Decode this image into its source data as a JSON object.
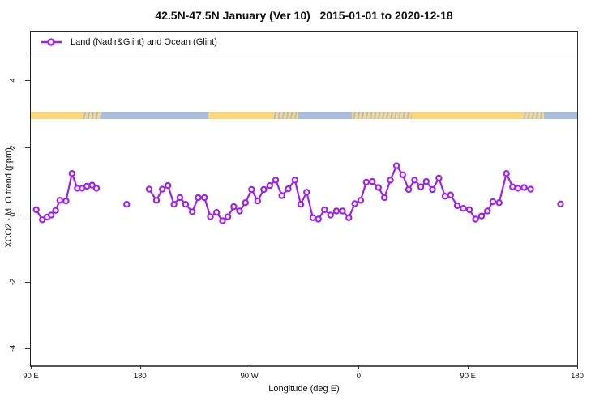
{
  "chart_data": {
    "type": "line",
    "title": "42.5N-47.5N January (Ver 10)   2015-01-01 to 2020-12-18",
    "xlabel": "Longitude (deg E)",
    "ylabel": "XCO2 - MLO trend (ppm)",
    "xlim": [
      90,
      540
    ],
    "ylim": [
      -4.5,
      5.45
    ],
    "grid": "off",
    "x_ticks": [
      {
        "pos": 90,
        "label": "90 E"
      },
      {
        "pos": 180,
        "label": "180"
      },
      {
        "pos": 270,
        "label": "90 W"
      },
      {
        "pos": 360,
        "label": "0"
      },
      {
        "pos": 450,
        "label": "90 E"
      },
      {
        "pos": 540,
        "label": "180"
      }
    ],
    "y_ticks": [
      {
        "pos": 4,
        "label": "4"
      },
      {
        "pos": 2,
        "label": "2"
      },
      {
        "pos": 0,
        "label": "0"
      },
      {
        "pos": -2,
        "label": "-2"
      },
      {
        "pos": -4,
        "label": "-4"
      }
    ],
    "legend": {
      "label": "Land (Nadir&Glint) and Ocean (Glint)",
      "position": "top-left-full-width"
    },
    "land_ocean_band": {
      "description": "land/ocean mask strip drawn near y=3",
      "y_top": 3.05,
      "y_bottom": 2.84,
      "colors": {
        "land": "#FBD77D",
        "ocean": "#A9BEDC"
      },
      "segments": [
        {
          "from": 90,
          "to": 132.3,
          "type": "land"
        },
        {
          "from": 132.3,
          "to": 147.7,
          "type": "mixed"
        },
        {
          "from": 147.7,
          "to": 236.3,
          "type": "ocean"
        },
        {
          "from": 236.3,
          "to": 289,
          "type": "land"
        },
        {
          "from": 289,
          "to": 310.3,
          "type": "mixed"
        },
        {
          "from": 310.3,
          "to": 354.3,
          "type": "ocean"
        },
        {
          "from": 354.3,
          "to": 403.7,
          "type": "mixed"
        },
        {
          "from": 403.7,
          "to": 494.3,
          "type": "land"
        },
        {
          "from": 494.3,
          "to": 512.3,
          "type": "mixed"
        },
        {
          "from": 512.3,
          "to": 540,
          "type": "ocean"
        }
      ]
    },
    "series": [
      {
        "name": "Land (Nadir&Glint) and Ocean (Glint)",
        "color": "#A020F0",
        "marker": "open-circle",
        "x_units": "deg E equivalent (90 to 540, wraps at 180/-180)",
        "segments": [
          [
            [
              94.5,
              0.14
            ],
            [
              99.5,
              -0.16
            ],
            [
              103.5,
              -0.08
            ],
            [
              106.8,
              -0.02
            ],
            [
              110.5,
              0.12
            ],
            [
              113.9,
              0.42
            ],
            [
              119,
              0.4
            ],
            [
              123.9,
              1.22
            ],
            [
              128.3,
              0.78
            ],
            [
              132.3,
              0.78
            ],
            [
              136.3,
              0.84
            ],
            [
              140.5,
              0.87
            ],
            [
              144.1,
              0.78
            ]
          ],
          [
            [
              169,
              0.3
            ]
          ],
          [
            [
              187.5,
              0.75
            ],
            [
              193.5,
              0.42
            ],
            [
              198.3,
              0.75
            ],
            [
              203,
              0.86
            ],
            [
              207.9,
              0.3
            ],
            [
              212.8,
              0.5
            ],
            [
              217.5,
              0.3
            ],
            [
              223,
              0.08
            ],
            [
              227.9,
              0.5
            ],
            [
              233,
              0.5
            ],
            [
              237.9,
              -0.07
            ],
            [
              243,
              0.06
            ],
            [
              247.9,
              -0.19
            ],
            [
              252.3,
              -0.07
            ],
            [
              257.2,
              0.23
            ],
            [
              261.9,
              0.1
            ],
            [
              266.8,
              0.35
            ],
            [
              271.9,
              0.74
            ],
            [
              276.8,
              0.4
            ],
            [
              281.9,
              0.74
            ],
            [
              286.8,
              0.86
            ],
            [
              291.7,
              1.02
            ],
            [
              296.8,
              0.56
            ],
            [
              302,
              0.76
            ],
            [
              307.5,
              1.02
            ],
            [
              312.3,
              0.3
            ],
            [
              317.2,
              0.66
            ],
            [
              322.3,
              -0.1
            ],
            [
              326.8,
              -0.14
            ],
            [
              331.9,
              0.14
            ],
            [
              336.8,
              -0.02
            ],
            [
              341.7,
              0.1
            ],
            [
              346.8,
              0.1
            ],
            [
              351.9,
              -0.1
            ],
            [
              356.8,
              0.32
            ],
            [
              361.7,
              0.42
            ],
            [
              366.3,
              0.96
            ],
            [
              371.2,
              0.98
            ],
            [
              376.3,
              0.8
            ],
            [
              381.2,
              0.5
            ],
            [
              386.1,
              1.02
            ],
            [
              391.2,
              1.45
            ],
            [
              396.3,
              1.18
            ],
            [
              401.2,
              0.74
            ],
            [
              406.1,
              1.02
            ],
            [
              411.2,
              0.82
            ],
            [
              415.7,
              0.98
            ],
            [
              420.8,
              0.74
            ],
            [
              426.1,
              1.08
            ],
            [
              431.2,
              0.54
            ],
            [
              435.7,
              0.58
            ],
            [
              441.2,
              0.26
            ],
            [
              446.1,
              0.18
            ],
            [
              451.2,
              0.14
            ],
            [
              456.3,
              -0.14
            ],
            [
              461.2,
              -0.05
            ],
            [
              466.1,
              0.1
            ],
            [
              470.5,
              0.38
            ],
            [
              475.7,
              0.35
            ],
            [
              481.7,
              1.22
            ],
            [
              486.8,
              0.82
            ],
            [
              491.2,
              0.78
            ],
            [
              496.3,
              0.8
            ],
            [
              501.7,
              0.75
            ]
          ],
          [
            [
              526.3,
              0.31
            ]
          ]
        ]
      }
    ]
  }
}
